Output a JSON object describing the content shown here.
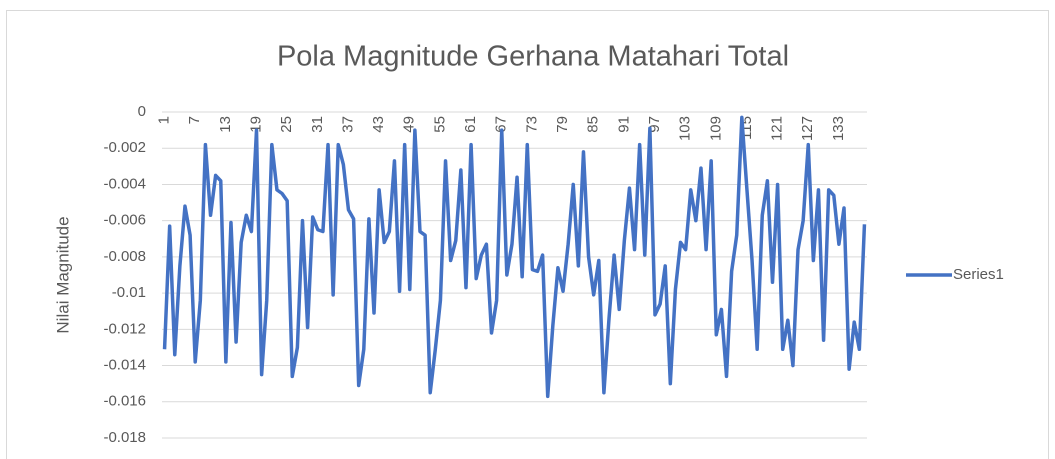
{
  "chart_data": {
    "type": "line",
    "title": "Pola Magnitude Gerhana Matahari Total",
    "y_label": "Nilai Magnitude",
    "categories": [
      1,
      null,
      null,
      null,
      null,
      null,
      7,
      null,
      null,
      null,
      null,
      null,
      13,
      null,
      null,
      null,
      null,
      null,
      19,
      null,
      null,
      null,
      null,
      null,
      25,
      null,
      null,
      null,
      null,
      null,
      31,
      null,
      null,
      null,
      null,
      null,
      37,
      null,
      null,
      null,
      null,
      null,
      43,
      null,
      null,
      null,
      null,
      null,
      49,
      null,
      null,
      null,
      null,
      null,
      55,
      null,
      null,
      null,
      null,
      null,
      61,
      null,
      null,
      null,
      null,
      null,
      67,
      null,
      null,
      null,
      null,
      null,
      73,
      null,
      null,
      null,
      null,
      null,
      79,
      null,
      null,
      null,
      null,
      null,
      85,
      null,
      null,
      null,
      null,
      null,
      91,
      null,
      null,
      null,
      null,
      null,
      97,
      null,
      null,
      null,
      null,
      null,
      103,
      null,
      null,
      null,
      null,
      null,
      109,
      null,
      null,
      null,
      null,
      null,
      115,
      null,
      null,
      null,
      null,
      null,
      121,
      null,
      null,
      null,
      null,
      null,
      127,
      null,
      null,
      null,
      null,
      null,
      133,
      null,
      null,
      null,
      null,
      null
    ],
    "series": [
      {
        "name": "Series1",
        "color": "#4472c4",
        "values": [
          -0.0131,
          -0.0063,
          -0.0134,
          -0.0085,
          -0.0052,
          -0.0068,
          -0.0138,
          -0.0104,
          -0.0018,
          -0.0057,
          -0.0035,
          -0.0038,
          -0.0138,
          -0.0061,
          -0.0127,
          -0.0072,
          -0.0057,
          -0.0066,
          -0.001,
          -0.0145,
          -0.0104,
          -0.0018,
          -0.0043,
          -0.0045,
          -0.0049,
          -0.0146,
          -0.013,
          -0.006,
          -0.0119,
          -0.0058,
          -0.0065,
          -0.0066,
          -0.0018,
          -0.0101,
          -0.0018,
          -0.0029,
          -0.0054,
          -0.0059,
          -0.0151,
          -0.0131,
          -0.0059,
          -0.0111,
          -0.0043,
          -0.0072,
          -0.0066,
          -0.0027,
          -0.0099,
          -0.0018,
          -0.0098,
          -0.001,
          -0.0066,
          -0.0068,
          -0.0155,
          -0.0131,
          -0.0104,
          -0.0027,
          -0.0082,
          -0.0071,
          -0.0032,
          -0.0097,
          -0.0018,
          -0.0092,
          -0.0079,
          -0.0073,
          -0.0122,
          -0.0104,
          -0.001,
          -0.009,
          -0.0073,
          -0.0036,
          -0.0091,
          -0.0018,
          -0.0087,
          -0.0088,
          -0.0079,
          -0.0157,
          -0.0118,
          -0.0086,
          -0.0099,
          -0.0073,
          -0.004,
          -0.0085,
          -0.0022,
          -0.008,
          -0.0101,
          -0.0082,
          -0.0155,
          -0.0114,
          -0.0079,
          -0.0109,
          -0.0071,
          -0.0042,
          -0.0076,
          -0.0018,
          -0.0079,
          -0.0009,
          -0.0112,
          -0.0106,
          -0.0085,
          -0.015,
          -0.0098,
          -0.0072,
          -0.0076,
          -0.0043,
          -0.006,
          -0.0031,
          -0.0076,
          -0.0027,
          -0.0123,
          -0.0109,
          -0.0146,
          -0.0088,
          -0.0068,
          -0.0003,
          -0.0043,
          -0.0082,
          -0.0131,
          -0.0057,
          -0.0038,
          -0.0094,
          -0.004,
          -0.0131,
          -0.0115,
          -0.014,
          -0.0076,
          -0.006,
          -0.0018,
          -0.0082,
          -0.0043,
          -0.0126,
          -0.0043,
          -0.0046,
          -0.0073,
          -0.0053,
          -0.0142,
          -0.0116,
          -0.0131,
          -0.0062
        ]
      }
    ],
    "ylim": [
      -0.018,
      0
    ],
    "yticks": [
      0,
      -0.002,
      -0.004,
      -0.006,
      -0.008,
      -0.01,
      -0.012,
      -0.014,
      -0.016,
      -0.018
    ],
    "grid": true,
    "legend": "right"
  }
}
